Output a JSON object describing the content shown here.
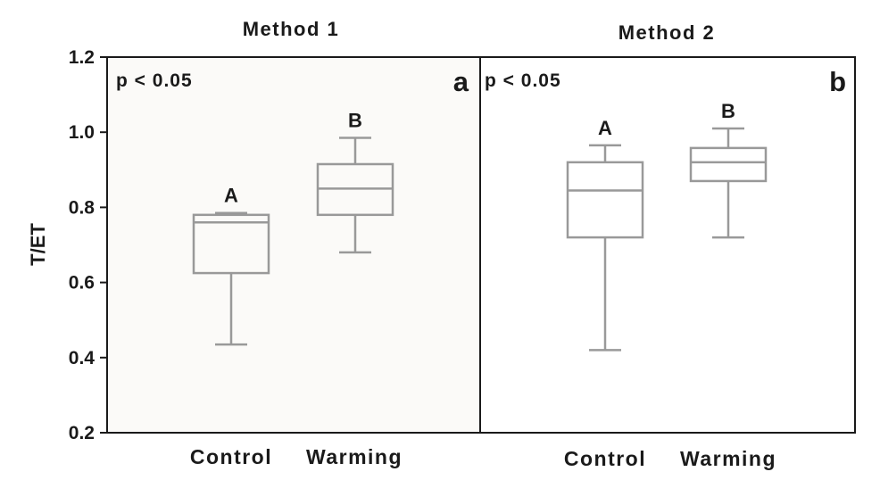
{
  "chart_data": {
    "type": "box",
    "ylabel": "T/ET",
    "ylim": [
      0.2,
      1.2
    ],
    "yticks": [
      "0.2",
      "0.4",
      "0.6",
      "0.8",
      "1.0",
      "1.2"
    ],
    "colors": {
      "box": "#999999",
      "frame": "#1a1a1a",
      "panel_a_bg": "#fbfaf8"
    },
    "panels": [
      {
        "title": "Method 1",
        "letter": "a",
        "p_text": "p < 0.05",
        "categories": [
          "Control",
          "Warming"
        ],
        "boxes": [
          {
            "category": "Control",
            "whisker_low": 0.435,
            "q1": 0.625,
            "median": 0.76,
            "q3": 0.78,
            "whisker_high": 0.785,
            "group_letter": "A"
          },
          {
            "category": "Warming",
            "whisker_low": 0.68,
            "q1": 0.78,
            "median": 0.85,
            "q3": 0.915,
            "whisker_high": 0.985,
            "group_letter": "B"
          }
        ]
      },
      {
        "title": "Method 2",
        "letter": "b",
        "p_text": "p < 0.05",
        "categories": [
          "Control",
          "Warming"
        ],
        "boxes": [
          {
            "category": "Control",
            "whisker_low": 0.42,
            "q1": 0.72,
            "median": 0.845,
            "q3": 0.92,
            "whisker_high": 0.965,
            "group_letter": "A"
          },
          {
            "category": "Warming",
            "whisker_low": 0.72,
            "q1": 0.87,
            "median": 0.92,
            "q3": 0.958,
            "whisker_high": 1.01,
            "group_letter": "B"
          }
        ]
      }
    ]
  }
}
